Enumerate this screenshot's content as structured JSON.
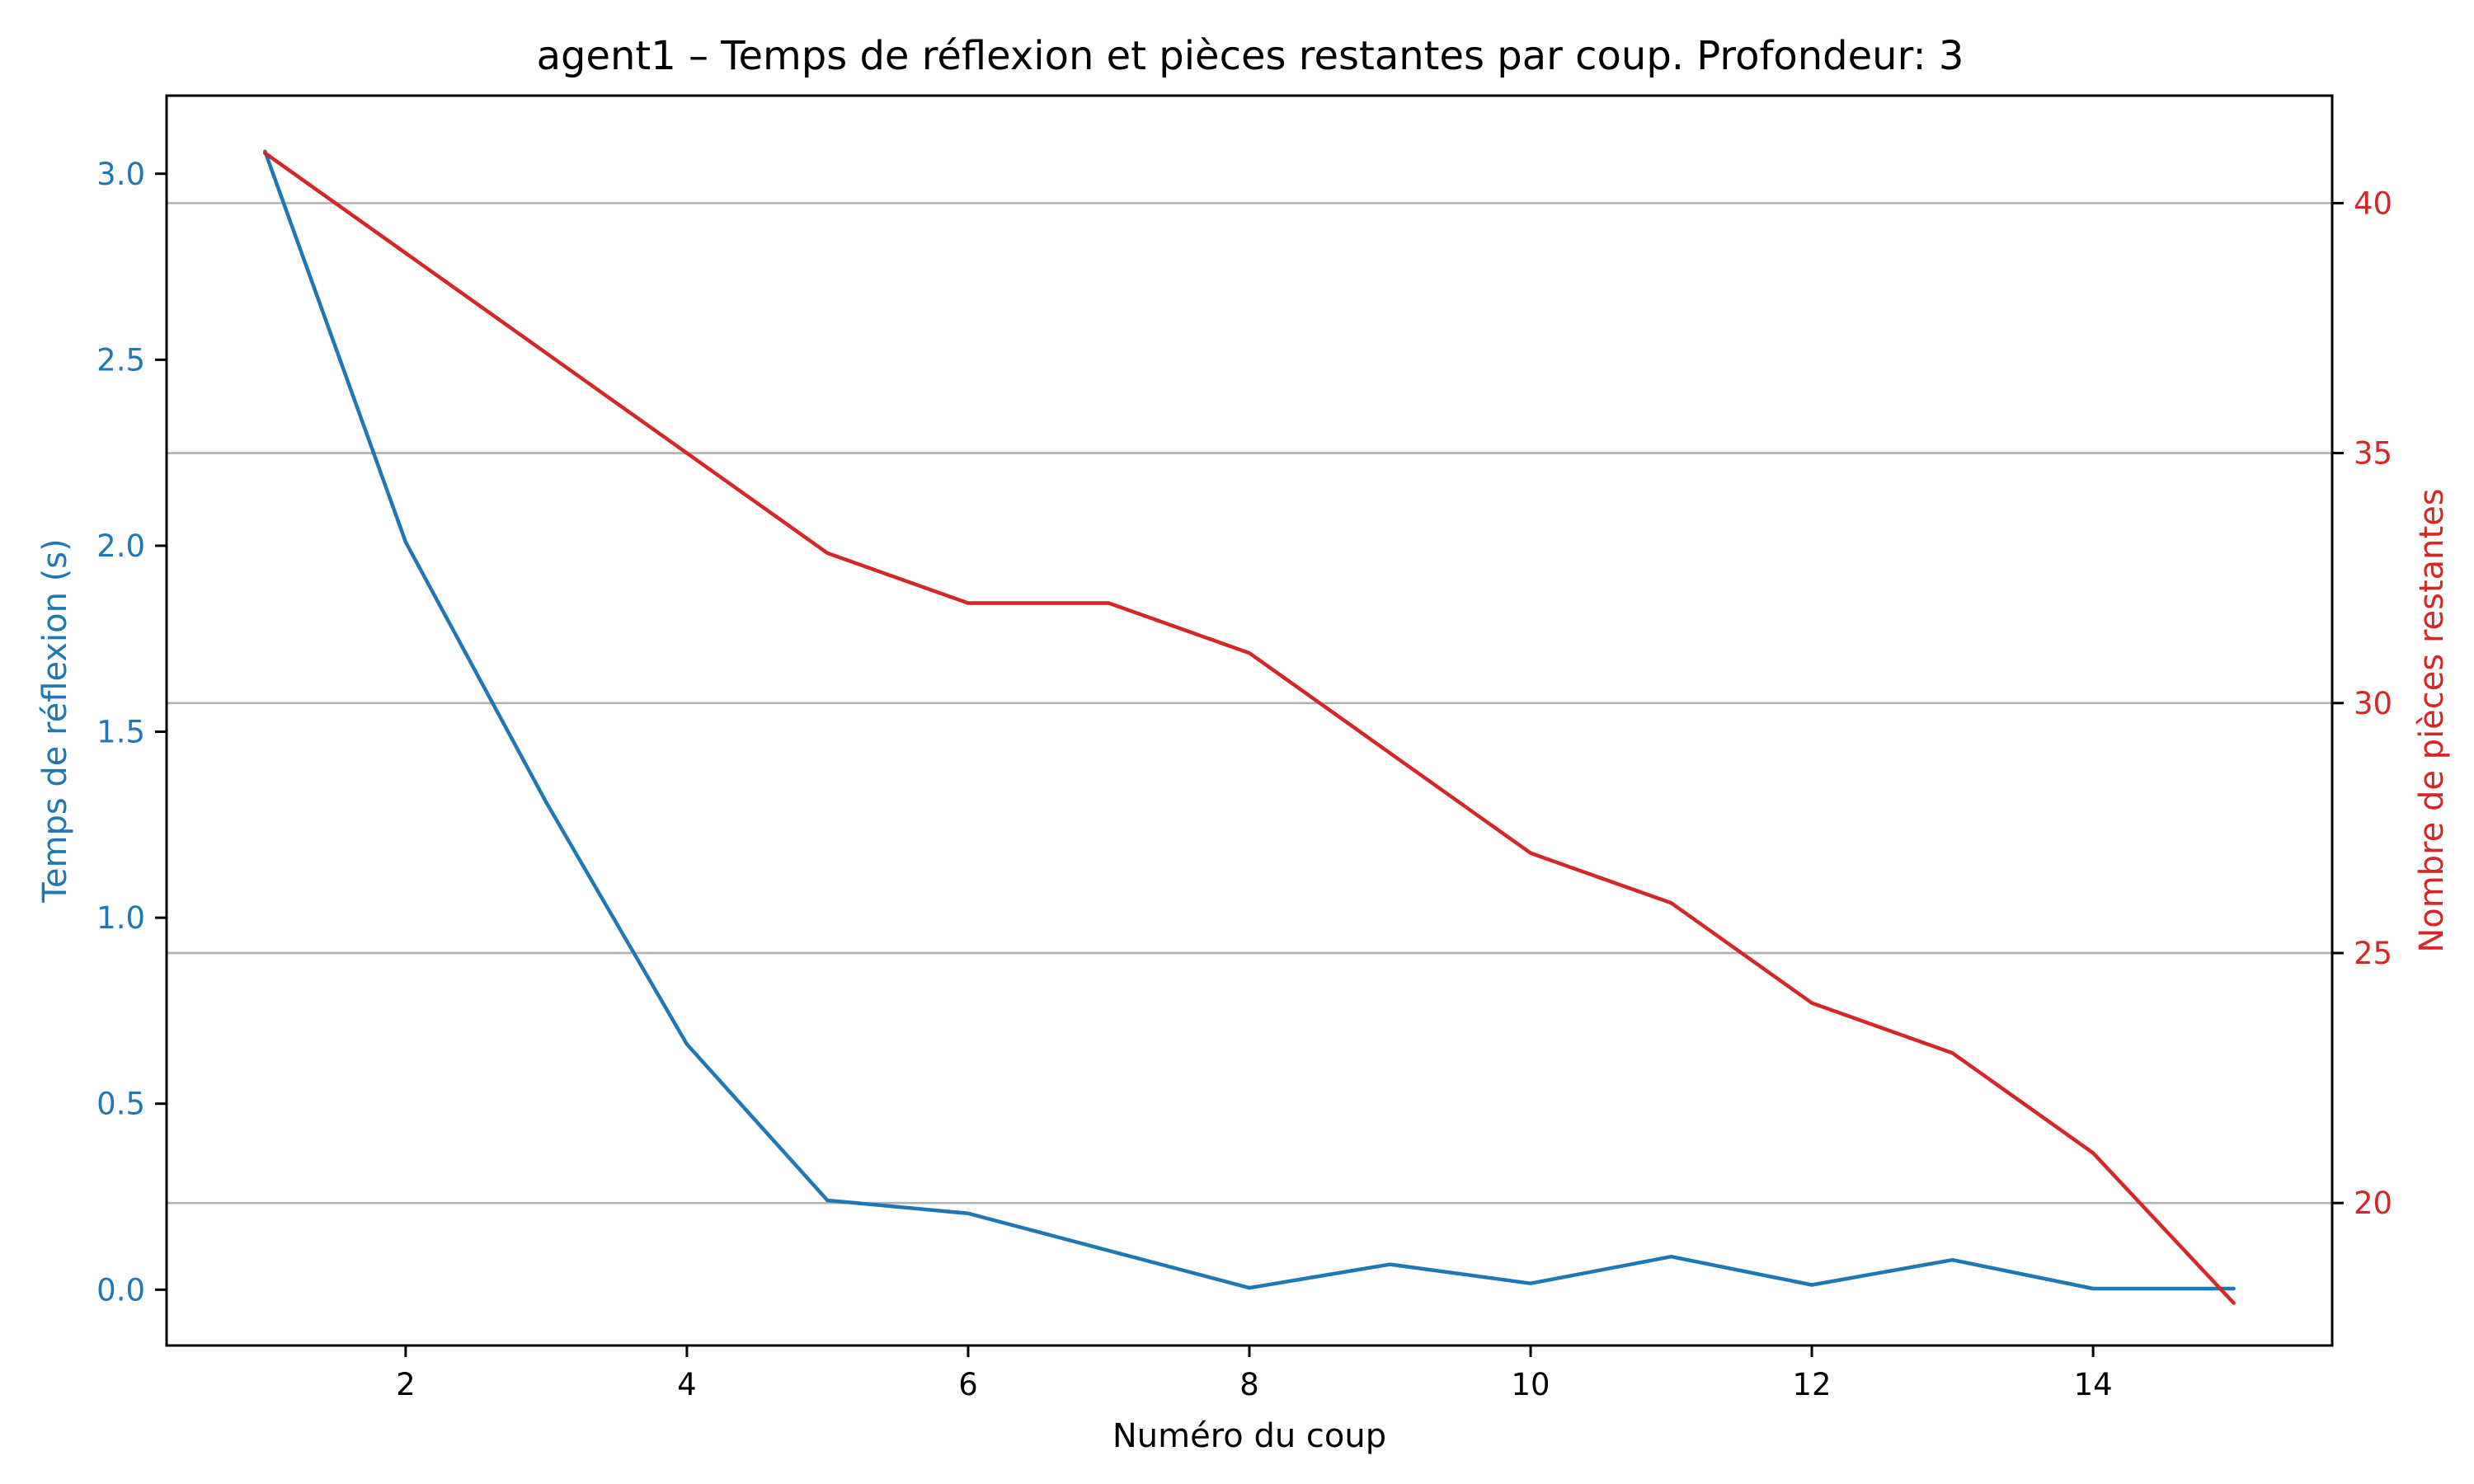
{
  "chart_data": {
    "type": "line",
    "title": "agent1 – Temps de réflexion et pièces restantes par coup. Profondeur: 3",
    "xlabel": "Numéro du coup",
    "ylabel_left": "Temps de réflexion (s)",
    "ylabel_right": "Nombre de pièces restantes",
    "xlim": [
      0.3,
      15.7
    ],
    "xticks": [
      2,
      4,
      6,
      8,
      10,
      12,
      14
    ],
    "ylim_left": [
      -0.15,
      3.21
    ],
    "yticks_left": [
      0.0,
      0.5,
      1.0,
      1.5,
      2.0,
      2.5,
      3.0
    ],
    "ylim_right": [
      17.15,
      42.15
    ],
    "yticks_right": [
      20,
      25,
      30,
      35,
      40
    ],
    "grid": "horizontal, right axis",
    "colors": {
      "left": "#1f77b4",
      "right": "#d62728"
    },
    "series": [
      {
        "axis": "left",
        "color": "#1f77b4",
        "x": [
          1,
          2,
          3,
          4,
          5,
          6,
          7,
          8,
          9,
          10,
          11,
          12,
          13,
          14,
          15
        ],
        "values": [
          3.06,
          2.01,
          1.31,
          0.66,
          0.24,
          0.205,
          0.105,
          0.005,
          0.068,
          0.017,
          0.089,
          0.013,
          0.08,
          0.003,
          0.003
        ]
      },
      {
        "axis": "right",
        "color": "#d62728",
        "x": [
          1,
          2,
          3,
          4,
          5,
          6,
          7,
          8,
          9,
          10,
          11,
          12,
          13,
          14,
          15
        ],
        "values": [
          41,
          39,
          37,
          35,
          33,
          32,
          32,
          31,
          29,
          27,
          26,
          24,
          23,
          21,
          18
        ]
      }
    ]
  }
}
